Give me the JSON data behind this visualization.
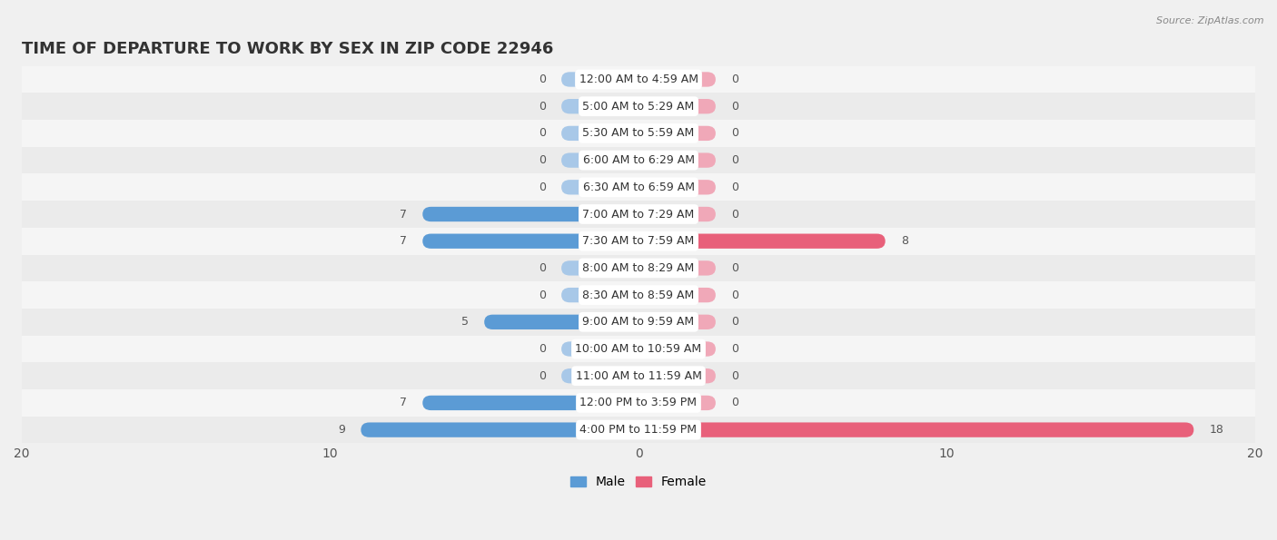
{
  "title": "TIME OF DEPARTURE TO WORK BY SEX IN ZIP CODE 22946",
  "source": "Source: ZipAtlas.com",
  "categories": [
    "12:00 AM to 4:59 AM",
    "5:00 AM to 5:29 AM",
    "5:30 AM to 5:59 AM",
    "6:00 AM to 6:29 AM",
    "6:30 AM to 6:59 AM",
    "7:00 AM to 7:29 AM",
    "7:30 AM to 7:59 AM",
    "8:00 AM to 8:29 AM",
    "8:30 AM to 8:59 AM",
    "9:00 AM to 9:59 AM",
    "10:00 AM to 10:59 AM",
    "11:00 AM to 11:59 AM",
    "12:00 PM to 3:59 PM",
    "4:00 PM to 11:59 PM"
  ],
  "male_values": [
    0,
    0,
    0,
    0,
    0,
    7,
    7,
    0,
    0,
    5,
    0,
    0,
    7,
    9
  ],
  "female_values": [
    0,
    0,
    0,
    0,
    0,
    0,
    8,
    0,
    0,
    0,
    0,
    0,
    0,
    18
  ],
  "male_color_active": "#5B9BD5",
  "male_color_zero": "#A8C8E8",
  "female_color_active": "#E8607A",
  "female_color_zero": "#F0A8B8",
  "label_bg": "#ffffff",
  "male_label": "Male",
  "female_label": "Female",
  "xlim": 20,
  "row_bg_odd": "#ebebeb",
  "row_bg_even": "#f5f5f5",
  "title_fontsize": 13,
  "axis_fontsize": 10,
  "value_fontsize": 9,
  "cat_fontsize": 9,
  "bar_height": 0.55,
  "stub_size": 2.5
}
